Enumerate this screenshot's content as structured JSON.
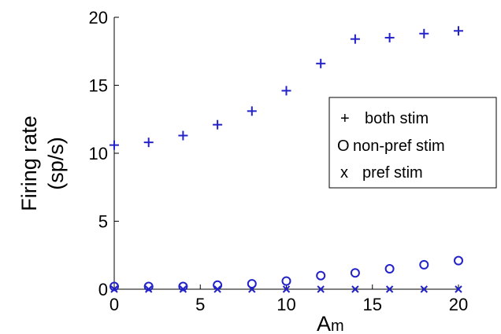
{
  "chart_data": {
    "type": "scatter",
    "xlabel": "Am",
    "xlabel_main": "A",
    "xlabel_sub": "m",
    "ylabel_line1": "Firing rate",
    "ylabel_line2": "(sp/s)",
    "xlim": [
      0,
      20
    ],
    "ylim": [
      0,
      20
    ],
    "xticks": [
      0,
      5,
      10,
      15,
      20
    ],
    "yticks": [
      0,
      5,
      10,
      15,
      20
    ],
    "x_tick_labels": [
      "0",
      "5",
      "10",
      "15",
      "20"
    ],
    "y_tick_labels": [
      "0",
      "5",
      "10",
      "15",
      "20"
    ],
    "grid": false,
    "legend_position": "right",
    "marker_color": "#2222c8",
    "legend": [
      {
        "symbol": "+",
        "label": "both stim"
      },
      {
        "symbol": "O",
        "label": "non-pref stim"
      },
      {
        "symbol": "x",
        "label": "pref stim"
      }
    ],
    "series": [
      {
        "name": "both stim",
        "marker": "plus",
        "x": [
          0,
          2,
          4,
          6,
          8,
          10,
          12,
          14,
          16,
          18,
          20
        ],
        "y": [
          10.6,
          10.8,
          11.3,
          12.1,
          13.1,
          14.6,
          16.6,
          18.4,
          18.5,
          18.8,
          19.0
        ]
      },
      {
        "name": "non-pref stim",
        "marker": "circle",
        "x": [
          0,
          2,
          4,
          6,
          8,
          10,
          12,
          14,
          16,
          18,
          20
        ],
        "y": [
          0.2,
          0.2,
          0.2,
          0.3,
          0.4,
          0.6,
          1.0,
          1.2,
          1.5,
          1.8,
          2.1
        ]
      },
      {
        "name": "pref stim",
        "marker": "cross",
        "x": [
          0,
          2,
          4,
          6,
          8,
          10,
          12,
          14,
          16,
          18,
          20
        ],
        "y": [
          0.0,
          0.0,
          0.0,
          0.0,
          0.0,
          0.0,
          0.0,
          0.0,
          0.0,
          0.0,
          0.0
        ]
      }
    ]
  }
}
